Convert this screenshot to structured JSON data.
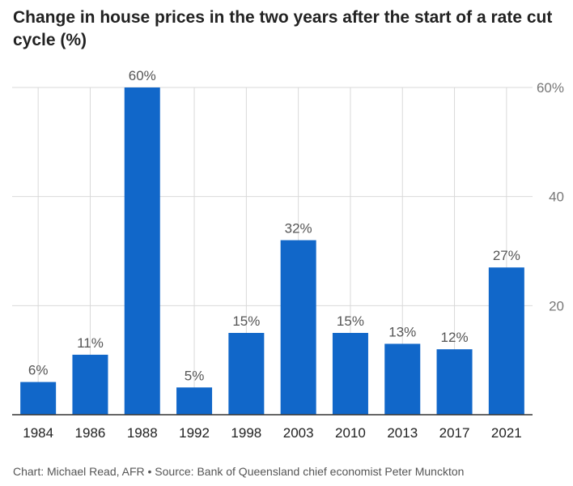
{
  "title": "Change in house prices in the two years after the start of a rate cut cycle (%)",
  "footer": "Chart: Michael Read, AFR • Source: Bank of Queensland chief economist Peter Munckton",
  "chart_data": {
    "type": "bar",
    "categories": [
      "1984",
      "1986",
      "1988",
      "1992",
      "1998",
      "2003",
      "2010",
      "2013",
      "2017",
      "2021"
    ],
    "values": [
      6,
      11,
      60,
      5,
      15,
      32,
      15,
      13,
      12,
      27
    ],
    "data_labels": [
      "6%",
      "11%",
      "60%",
      "5%",
      "15%",
      "32%",
      "15%",
      "13%",
      "12%",
      "27%"
    ],
    "y_ticks": [
      20,
      40,
      60
    ],
    "y_tick_labels": [
      "20",
      "40",
      "60%"
    ],
    "ylim": [
      0,
      60
    ],
    "y_axis_position": "right",
    "grid": true,
    "colors": {
      "bar": "#1167c9",
      "grid": "#d9d9d9",
      "axis": "#333333",
      "label": "#555555",
      "tick": "#777777"
    }
  }
}
